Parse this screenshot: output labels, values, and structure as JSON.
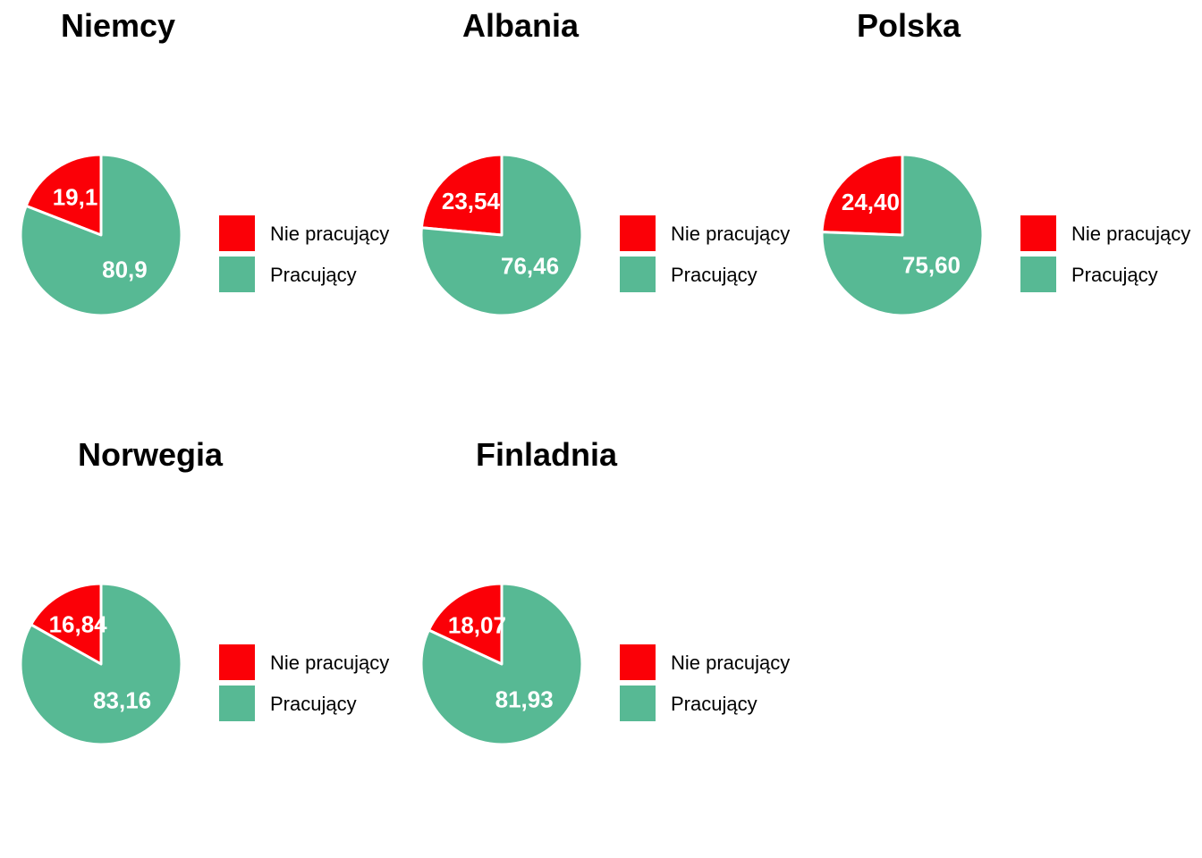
{
  "legend": {
    "items": [
      {
        "label": "Nie pracujący",
        "color": "#fb0007"
      },
      {
        "label": "Pracujący",
        "color": "#57b994"
      }
    ]
  },
  "chart_data": [
    {
      "type": "pie",
      "title": "Niemcy",
      "categories": [
        "Nie pracujący",
        "Pracujący"
      ],
      "values": [
        19.1,
        80.9
      ],
      "labels": [
        "19,1",
        "80,9"
      ],
      "colors": [
        "#fb0007",
        "#57b994"
      ]
    },
    {
      "type": "pie",
      "title": "Albania",
      "categories": [
        "Nie pracujący",
        "Pracujący"
      ],
      "values": [
        23.54,
        76.46
      ],
      "labels": [
        "23,54",
        "76,46"
      ],
      "colors": [
        "#fb0007",
        "#57b994"
      ]
    },
    {
      "type": "pie",
      "title": "Polska",
      "categories": [
        "Nie pracujący",
        "Pracujący"
      ],
      "values": [
        24.4,
        75.6
      ],
      "labels": [
        "24,40",
        "75,60"
      ],
      "colors": [
        "#fb0007",
        "#57b994"
      ]
    },
    {
      "type": "pie",
      "title": "Norwegia",
      "categories": [
        "Nie pracujący",
        "Pracujący"
      ],
      "values": [
        16.84,
        83.16
      ],
      "labels": [
        "16,84",
        "83,16"
      ],
      "colors": [
        "#fb0007",
        "#57b994"
      ]
    },
    {
      "type": "pie",
      "title": "Finladnia",
      "categories": [
        "Nie pracujący",
        "Pracujący"
      ],
      "values": [
        18.07,
        81.93
      ],
      "labels": [
        "18,07",
        "81,93"
      ],
      "colors": [
        "#fb0007",
        "#57b994"
      ]
    }
  ]
}
